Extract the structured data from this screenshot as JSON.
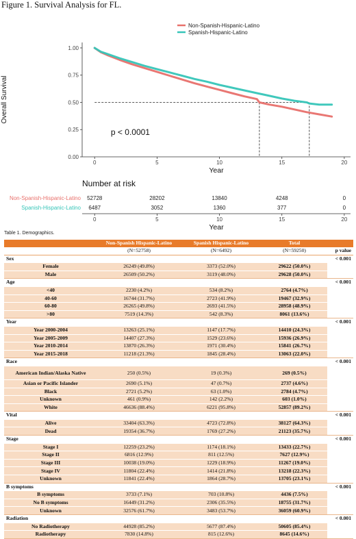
{
  "figure": {
    "title": "Figure 1. Survival Analysis for FL.",
    "pvalue_text": "p < 0.0001"
  },
  "chart_data": {
    "type": "line",
    "xlabel": "Year",
    "ylabel": "Overall Survival",
    "xlim": [
      -1,
      20.5
    ],
    "ylim": [
      0,
      1.05
    ],
    "x_ticks": [
      0,
      5,
      10,
      15,
      20
    ],
    "y_ticks": [
      0.0,
      0.25,
      0.5,
      0.75,
      1.0
    ],
    "y_tick_labels": [
      "0.00",
      "0.25",
      "0.50",
      "0.75",
      "1.00"
    ],
    "legend_placement": "top-right",
    "grid": false,
    "series": [
      {
        "name": "Non-Spanish-Hispanic-Latino",
        "color": "#e8706b",
        "x": [
          0,
          0.5,
          1,
          2,
          3,
          4,
          5,
          6,
          7,
          8,
          9,
          10,
          11,
          12,
          13,
          13.2,
          14,
          15,
          16,
          17,
          18,
          19
        ],
        "y": [
          1.0,
          0.96,
          0.935,
          0.89,
          0.85,
          0.815,
          0.78,
          0.745,
          0.71,
          0.675,
          0.645,
          0.615,
          0.585,
          0.555,
          0.53,
          0.5,
          0.48,
          0.46,
          0.435,
          0.41,
          0.39,
          0.37
        ]
      },
      {
        "name": "Spanish-Hispanic-Latino",
        "color": "#36c5b8",
        "x": [
          0,
          0.5,
          1,
          2,
          3,
          4,
          5,
          6,
          7,
          8,
          9,
          10,
          11,
          12,
          13,
          14,
          15,
          16,
          17,
          17.2,
          18,
          19
        ],
        "y": [
          1.0,
          0.965,
          0.945,
          0.905,
          0.87,
          0.835,
          0.805,
          0.775,
          0.745,
          0.715,
          0.69,
          0.66,
          0.635,
          0.61,
          0.585,
          0.56,
          0.535,
          0.515,
          0.5,
          0.49,
          0.48,
          0.48
        ]
      }
    ],
    "median_lines": [
      {
        "series": "Non-Spanish-Hispanic-Latino",
        "x": 13.2,
        "y": 0.5
      },
      {
        "series": "Spanish-Hispanic-Latino",
        "x": 17.2,
        "y": 0.5
      }
    ]
  },
  "risk_table": {
    "title": "Number at risk",
    "xlabel": "Year",
    "x_ticks": [
      "0",
      "5",
      "10",
      "15",
      "20"
    ],
    "rows": [
      {
        "name": "Non-Spanish-Hispanic-Latino",
        "color": "#e8706b",
        "values": [
          "52728",
          "28202",
          "13840",
          "4248",
          "0"
        ]
      },
      {
        "name": "Spanish-Hispanic-Latino",
        "color": "#36c5b8",
        "values": [
          "6487",
          "3052",
          "1360",
          "377",
          "0"
        ]
      }
    ]
  },
  "table": {
    "caption": "Table 1. Demographics.",
    "col_headers": [
      "",
      "Non-Spanish Hispanic-Latino",
      "Spanish Hispanic-Latino",
      "Total",
      ""
    ],
    "col_ns": [
      "",
      "(N=52758)",
      "(N=6492)",
      "(N=59250)",
      "p value"
    ],
    "sections": [
      {
        "name": "Sex",
        "p": "< 0.001",
        "rows": [
          {
            "label": "Female",
            "a": "26249 (49.8%)",
            "b": "3373 (52.0%)",
            "t": "29622 (50.0%)"
          },
          {
            "label": "Male",
            "a": "26509 (50.2%)",
            "b": "3119 (48.0%)",
            "t": "29628 (50.0%)"
          }
        ]
      },
      {
        "name": "Age",
        "p": "< 0.001",
        "rows": [
          {
            "label": "<40",
            "a": "2230 (4.2%)",
            "b": "534 (8.2%)",
            "t": "2764 (4.7%)"
          },
          {
            "label": "40-60",
            "a": "16744 (31.7%)",
            "b": "2723 (41.9%)",
            "t": "19467 (32.9%)"
          },
          {
            "label": "60-80",
            "a": "26265 (49.8%)",
            "b": "2693 (41.5%)",
            "t": "28958 (48.9%)"
          },
          {
            "label": ">80",
            "a": "7519 (14.3%)",
            "b": "542 (8.3%)",
            "t": "8061 (13.6%)"
          }
        ]
      },
      {
        "name": "Year",
        "p": "< 0.001",
        "rows": [
          {
            "label": "Year 2000-2004",
            "a": "13263 (25.1%)",
            "b": "1147 (17.7%)",
            "t": "14410 (24.3%)"
          },
          {
            "label": "Year 2005-2009",
            "a": "14407 (27.3%)",
            "b": "1529 (23.6%)",
            "t": "15936 (26.9%)"
          },
          {
            "label": "Year 2010-2014",
            "a": "13870 (26.3%)",
            "b": "1971 (30.4%)",
            "t": "15841 (26.7%)"
          },
          {
            "label": "Year 2015-2018",
            "a": "11218 (21.3%)",
            "b": "1845 (28.4%)",
            "t": "13063 (22.0%)"
          }
        ]
      },
      {
        "name": "Race",
        "p": "< 0.001",
        "rows": [
          {
            "label": "American Indian/Alaska Native",
            "a": "250 (0.5%)",
            "b": "19 (0.3%)",
            "t": "269 (0.5%)",
            "tall": true
          },
          {
            "label": "Asian or Pacific Islander",
            "a": "2690 (5.1%)",
            "b": "47 (0.7%)",
            "t": "2737 (4.6%)"
          },
          {
            "label": "Black",
            "a": "2721 (5.2%)",
            "b": "63 (1.0%)",
            "t": "2784 (4.7%)"
          },
          {
            "label": "Unknown",
            "a": "461 (0.9%)",
            "b": "142 (2.2%)",
            "t": "603 (1.0%)"
          },
          {
            "label": "White",
            "a": "46636 (88.4%)",
            "b": "6221 (95.8%)",
            "t": "52857 (89.2%)"
          }
        ]
      },
      {
        "name": "Vital",
        "p": "< 0.001",
        "rows": [
          {
            "label": "Alive",
            "a": "33404 (63.3%)",
            "b": "4723 (72.8%)",
            "t": "38127 (64.3%)"
          },
          {
            "label": "Dead",
            "a": "19354 (36.7%)",
            "b": "1769 (27.2%)",
            "t": "21123 (35.7%)"
          }
        ]
      },
      {
        "name": "Stage",
        "p": "< 0.001",
        "rows": [
          {
            "label": "Stage I",
            "a": "12259 (23.2%)",
            "b": "1174 (18.1%)",
            "t": "13433 (22.7%)"
          },
          {
            "label": "Stage II",
            "a": "6816 (12.9%)",
            "b": "811 (12.5%)",
            "t": "7627 (12.9%)"
          },
          {
            "label": "Stage III",
            "a": "10038 (19.0%)",
            "b": "1229 (18.9%)",
            "t": "11267 (19.0%)"
          },
          {
            "label": "Stage IV",
            "a": "11804 (22.4%)",
            "b": "1414 (21.8%)",
            "t": "13218 (22.3%)"
          },
          {
            "label": "Unknown",
            "a": "11841 (22.4%)",
            "b": "1864 (28.7%)",
            "t": "13705 (23.1%)"
          }
        ]
      },
      {
        "name": "B symptoms",
        "p": "< 0.001",
        "rows": [
          {
            "label": "B symptoms",
            "a": "3733 (7.1%)",
            "b": "703 (10.8%)",
            "t": "4436 (7.5%)"
          },
          {
            "label": "No B symptoms",
            "a": "16449 (31.2%)",
            "b": "2306 (35.5%)",
            "t": "18755 (31.7%)"
          },
          {
            "label": "Unknown",
            "a": "32576 (61.7%)",
            "b": "3483 (53.7%)",
            "t": "36059 (60.9%)"
          }
        ]
      },
      {
        "name": "Radiation",
        "p": "< 0.001",
        "rows": [
          {
            "label": "No Radiotherapy",
            "a": "44928 (85.2%)",
            "b": "5677 (87.4%)",
            "t": "50605 (85.4%)"
          },
          {
            "label": "Radiotherapy",
            "a": "7830 (14.8%)",
            "b": "815 (12.6%)",
            "t": "8645 (14.6%)"
          }
        ]
      }
    ]
  }
}
